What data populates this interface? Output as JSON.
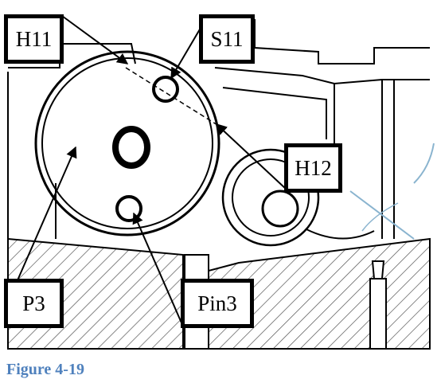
{
  "figure": {
    "caption": "Figure 4-19",
    "caption_color": "#4f81bd"
  },
  "callouts": {
    "h11": "H11",
    "s11": "S11",
    "h12": "H12",
    "p3": "P3",
    "pin3": "Pin3"
  },
  "colors": {
    "line": "#000000",
    "hatch": "#555555",
    "accent_blue": "#8ab4cf"
  }
}
